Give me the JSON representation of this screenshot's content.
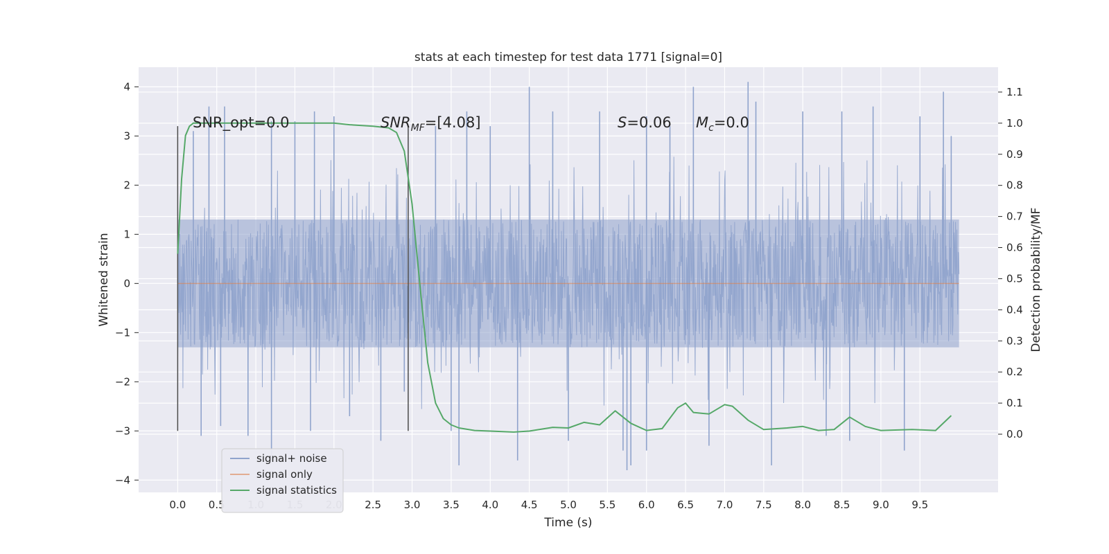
{
  "chart_data": {
    "type": "line",
    "title": "stats at each timestep for test data 1771 [signal=0]",
    "xlabel": "Time (s)",
    "ylabel": "Whitened strain",
    "y2label": "Detection probability/MF",
    "xlim": [
      -0.5,
      10.5
    ],
    "ylim": [
      -4.25,
      4.4
    ],
    "y2lim": [
      -0.187,
      1.18
    ],
    "x_ticks": [
      "0.0",
      "0.5",
      "1.0",
      "1.5",
      "2.0",
      "2.5",
      "3.0",
      "3.5",
      "4.0",
      "4.5",
      "5.0",
      "5.5",
      "6.0",
      "6.5",
      "7.0",
      "7.5",
      "8.0",
      "8.5",
      "9.0",
      "9.5"
    ],
    "y_ticks": [
      "4",
      "3",
      "2",
      "1",
      "0",
      "−1",
      "−2",
      "−3",
      "−4"
    ],
    "y2_ticks": [
      "1.1",
      "1.0",
      "0.9",
      "0.8",
      "0.7",
      "0.6",
      "0.5",
      "0.4",
      "0.3",
      "0.2",
      "0.1",
      "0.0"
    ],
    "grid": true,
    "legend_position": "lower-left",
    "colors": {
      "plot_bg": "#eaeaf2",
      "grid": "#ffffff",
      "noise": "#8fa3cc",
      "signal_only": "#dd8452",
      "statistics": "#55a868",
      "marker": "#4a4a4a"
    },
    "annotations": {
      "snr_opt": "SNR_opt=0.0",
      "snr_mf_name": "SNR",
      "snr_mf_sub": "MF",
      "snr_mf_value": "=[4.08]",
      "s_name": "S",
      "s_value": "=0.06",
      "mc_name": "M",
      "mc_sub": "c",
      "mc_value": "=0.0"
    },
    "vertical_markers": [
      {
        "x": 0.0,
        "y_from": -3.0,
        "y_to": 3.2
      },
      {
        "x": 2.95,
        "y_from": -3.0,
        "y_to": 3.2
      }
    ],
    "series": [
      {
        "name": "signal+ noise",
        "x_range": [
          0.0,
          10.0
        ],
        "band_low": -1.3,
        "band_high": 1.3,
        "peaks": [
          [
            0.2,
            3.1
          ],
          [
            0.3,
            -3.1
          ],
          [
            0.4,
            3.6
          ],
          [
            0.55,
            -2.9
          ],
          [
            0.6,
            3.6
          ],
          [
            0.9,
            -3.1
          ],
          [
            1.2,
            3.3
          ],
          [
            1.2,
            -3.6
          ],
          [
            1.5,
            3.3
          ],
          [
            1.7,
            -3.0
          ],
          [
            1.75,
            3.5
          ],
          [
            2.0,
            3.4
          ],
          [
            2.2,
            -2.7
          ],
          [
            2.6,
            -3.2
          ],
          [
            2.9,
            -2.2
          ],
          [
            3.3,
            3.2
          ],
          [
            3.5,
            -3.0
          ],
          [
            3.6,
            -3.7
          ],
          [
            3.7,
            3.5
          ],
          [
            4.0,
            3.2
          ],
          [
            4.35,
            -3.6
          ],
          [
            4.5,
            4.0
          ],
          [
            4.8,
            3.5
          ],
          [
            5.0,
            -3.2
          ],
          [
            5.4,
            3.5
          ],
          [
            5.7,
            -3.4
          ],
          [
            5.75,
            -3.8
          ],
          [
            5.8,
            -3.7
          ],
          [
            6.0,
            -3.4
          ],
          [
            6.0,
            3.4
          ],
          [
            6.3,
            3.2
          ],
          [
            6.6,
            4.0
          ],
          [
            6.8,
            -3.3
          ],
          [
            7.3,
            4.1
          ],
          [
            7.4,
            3.7
          ],
          [
            7.6,
            -3.7
          ],
          [
            8.0,
            3.5
          ],
          [
            8.3,
            -3.1
          ],
          [
            8.5,
            3.5
          ],
          [
            8.6,
            -3.2
          ],
          [
            8.9,
            3.6
          ],
          [
            9.3,
            -3.4
          ],
          [
            9.5,
            3.4
          ],
          [
            9.8,
            3.9
          ],
          [
            9.9,
            3.0
          ]
        ]
      },
      {
        "name": "signal only",
        "x": [
          0.0,
          10.0
        ],
        "y": [
          0.0,
          0.0
        ]
      },
      {
        "name": "signal statistics",
        "axis": "right",
        "x": [
          0.0,
          0.05,
          0.1,
          0.15,
          0.2,
          0.3,
          0.5,
          1.0,
          1.5,
          2.0,
          2.2,
          2.5,
          2.7,
          2.8,
          2.9,
          3.0,
          3.1,
          3.2,
          3.3,
          3.4,
          3.5,
          3.6,
          3.8,
          4.0,
          4.3,
          4.5,
          4.8,
          5.0,
          5.2,
          5.4,
          5.6,
          5.8,
          6.0,
          6.2,
          6.4,
          6.5,
          6.6,
          6.8,
          7.0,
          7.1,
          7.3,
          7.5,
          7.8,
          8.0,
          8.2,
          8.4,
          8.6,
          8.8,
          9.0,
          9.4,
          9.7,
          9.9
        ],
        "y": [
          0.58,
          0.82,
          0.96,
          0.99,
          1.0,
          1.0,
          1.0,
          1.0,
          1.0,
          1.0,
          0.995,
          0.99,
          0.985,
          0.97,
          0.91,
          0.74,
          0.48,
          0.23,
          0.1,
          0.05,
          0.03,
          0.02,
          0.012,
          0.01,
          0.007,
          0.01,
          0.022,
          0.02,
          0.038,
          0.03,
          0.075,
          0.035,
          0.012,
          0.018,
          0.085,
          0.1,
          0.07,
          0.065,
          0.095,
          0.09,
          0.045,
          0.015,
          0.02,
          0.025,
          0.012,
          0.015,
          0.055,
          0.025,
          0.012,
          0.015,
          0.012,
          0.06
        ]
      }
    ]
  }
}
